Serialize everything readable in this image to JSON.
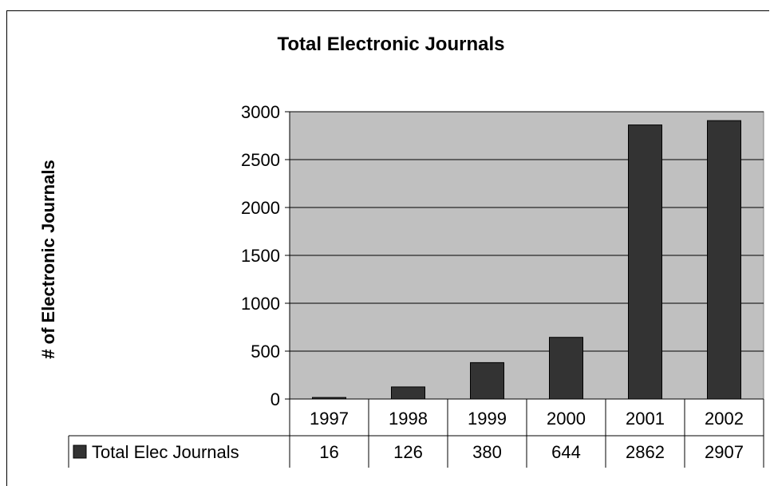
{
  "chart_data": {
    "type": "bar",
    "title": "Total Electronic Journals",
    "ylabel": "# of Electronic Journals",
    "xlabel": "",
    "categories": [
      "1997",
      "1998",
      "1999",
      "2000",
      "2001",
      "2002"
    ],
    "series": [
      {
        "name": "Total Elec Journals",
        "values": [
          16,
          126,
          380,
          644,
          2862,
          2907
        ]
      }
    ],
    "data_table_values": [
      "16",
      "126",
      "380",
      "644",
      "2862",
      "2907"
    ],
    "ylim": [
      0,
      3000
    ],
    "yticks": [
      "0",
      "500",
      "1000",
      "1500",
      "2000",
      "2500",
      "3000"
    ],
    "grid": true,
    "legend": "data-table",
    "colors": {
      "bar": "#333333",
      "plot_bg": "#c0c0c0",
      "gridline": "#000000"
    }
  }
}
